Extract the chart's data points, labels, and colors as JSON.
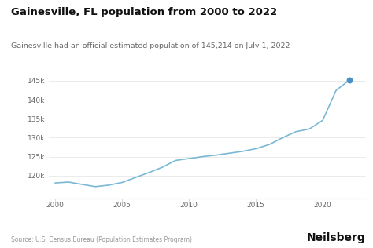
{
  "title": "Gainesville, FL population from 2000 to 2022",
  "subtitle": "Gainesville had an official estimated population of 145,214 on July 1, 2022",
  "source": "Source: U.S. Census Bureau (Population Estimates Program)",
  "brand": "Neilsberg",
  "years": [
    2000,
    2001,
    2002,
    2003,
    2004,
    2005,
    2006,
    2007,
    2008,
    2009,
    2010,
    2011,
    2012,
    2013,
    2014,
    2015,
    2016,
    2017,
    2018,
    2019,
    2020,
    2021,
    2022
  ],
  "population": [
    118072,
    118300,
    117700,
    117100,
    117500,
    118200,
    119500,
    120800,
    122200,
    124000,
    124500,
    125000,
    125400,
    125900,
    126400,
    127100,
    128200,
    130000,
    131600,
    132300,
    134600,
    142500,
    145214
  ],
  "line_color": "#7ab8d4",
  "marker_color": "#4a90c4",
  "background_color": "#ffffff",
  "grid_color": "#e8e8e8",
  "title_fontsize": 9.5,
  "subtitle_fontsize": 6.8,
  "tick_label_color": "#666666",
  "source_fontsize": 5.5,
  "brand_fontsize": 10,
  "ylim": [
    114000,
    148000
  ],
  "xlim": [
    1999.5,
    2023.2
  ],
  "yticks": [
    120000,
    125000,
    130000,
    135000,
    140000,
    145000
  ],
  "xticks": [
    2000,
    2005,
    2010,
    2015,
    2020
  ]
}
